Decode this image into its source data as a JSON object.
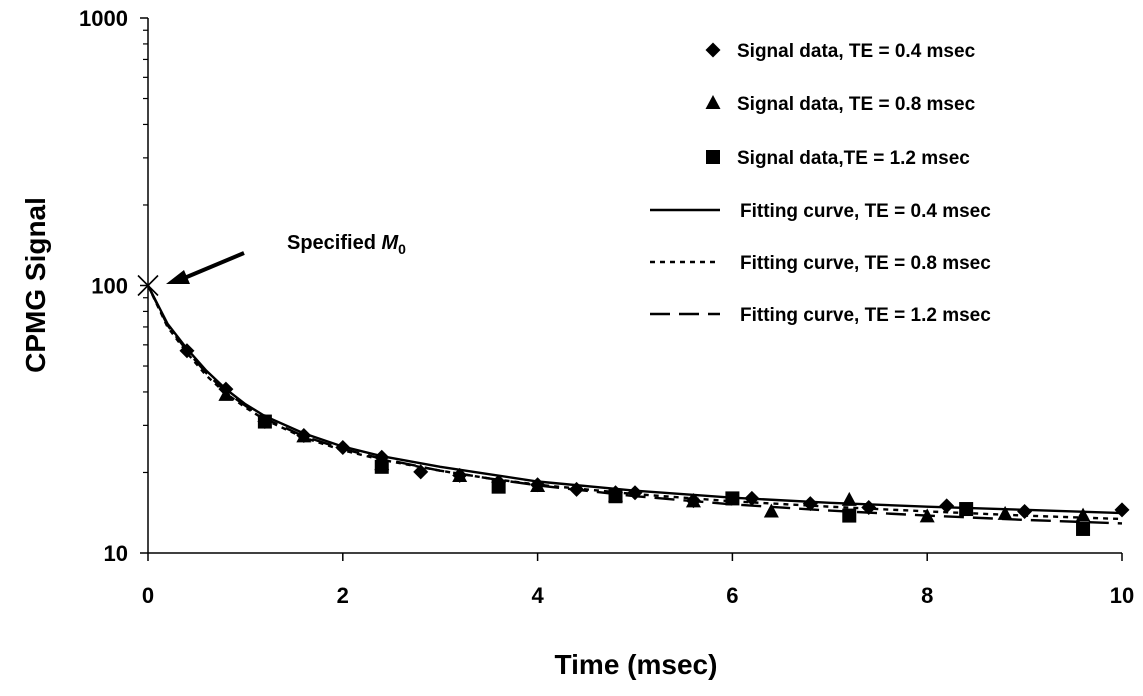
{
  "chart_data": {
    "type": "scatter",
    "title": "",
    "xlabel": "Time (msec)",
    "ylabel": "CPMG Signal",
    "xlim": [
      0,
      10
    ],
    "ylim": [
      10,
      1000
    ],
    "yscale": "log",
    "x_ticks": [
      "0",
      "2",
      "4",
      "6",
      "8",
      "10"
    ],
    "y_ticks": [
      "10",
      "100",
      "1000"
    ],
    "grid": false,
    "legend_position": "top-right",
    "annotation": {
      "text": "Specified ",
      "math_symbol": "M",
      "subscript": "0",
      "point": [
        0,
        100
      ],
      "marker": "x"
    },
    "series": [
      {
        "name": "Signal data, TE = 0.4 msec",
        "kind": "scatter",
        "marker": "diamond",
        "x": [
          0.4,
          0.8,
          1.2,
          1.6,
          2.0,
          2.4,
          2.8,
          3.2,
          3.6,
          4.0,
          4.4,
          4.8,
          5.0,
          5.6,
          6.2,
          6.8,
          7.4,
          8.2,
          9.0,
          10.0
        ],
        "y": [
          57,
          41,
          31,
          27.5,
          24.8,
          22.8,
          20.1,
          19.5,
          18.4,
          18.0,
          17.3,
          16.8,
          16.8,
          15.7,
          16.0,
          15.3,
          14.8,
          15.0,
          14.3,
          14.5
        ]
      },
      {
        "name": "Signal data, TE = 0.8 msec",
        "kind": "scatter",
        "marker": "triangle",
        "x": [
          0.8,
          1.6,
          2.4,
          3.2,
          4.0,
          4.8,
          5.6,
          6.4,
          7.2,
          8.0,
          8.8,
          9.6
        ],
        "y": [
          39,
          27.3,
          21.5,
          19.4,
          17.8,
          16.4,
          15.6,
          14.3,
          15.8,
          13.7,
          14.0,
          13.8
        ]
      },
      {
        "name": "Signal data,TE = 1.2 msec",
        "kind": "scatter",
        "marker": "square",
        "x": [
          1.2,
          2.4,
          3.6,
          4.8,
          6.0,
          7.2,
          8.4,
          9.6
        ],
        "y": [
          31,
          21.0,
          17.7,
          16.3,
          16.0,
          13.8,
          14.6,
          12.3
        ]
      },
      {
        "name": "Fitting curve, TE = 0.4 msec",
        "kind": "line",
        "dash": "solid",
        "x": [
          0,
          0.2,
          0.4,
          0.6,
          0.8,
          1.0,
          1.2,
          1.6,
          2.0,
          2.4,
          3.0,
          3.5,
          4.0,
          5.0,
          6.0,
          7.0,
          8.0,
          9.0,
          10.0
        ],
        "y": [
          100,
          72,
          58,
          48,
          41,
          36,
          32.5,
          28,
          25,
          23,
          21,
          19.7,
          18.5,
          17.1,
          16.1,
          15.4,
          14.9,
          14.5,
          14.1
        ]
      },
      {
        "name": "Fitting curve, TE = 0.8 msec",
        "kind": "line",
        "dash": "dotted",
        "x": [
          0,
          0.2,
          0.4,
          0.6,
          0.8,
          1.0,
          1.2,
          1.6,
          2.0,
          2.4,
          3.0,
          3.5,
          4.0,
          5.0,
          6.0,
          7.0,
          8.0,
          9.0,
          10.0
        ],
        "y": [
          100,
          70,
          56,
          46,
          39.5,
          35,
          31.5,
          27,
          24.2,
          22.3,
          20.3,
          19.0,
          18.0,
          16.6,
          15.6,
          14.9,
          14.3,
          13.8,
          13.4
        ]
      },
      {
        "name": "Fitting curve, TE = 1.2 msec",
        "kind": "line",
        "dash": "dashed",
        "x": [
          0,
          0.2,
          0.4,
          0.6,
          0.8,
          1.0,
          1.2,
          1.6,
          2.0,
          2.4,
          3.0,
          3.5,
          4.0,
          5.0,
          6.0,
          7.0,
          8.0,
          9.0,
          10.0
        ],
        "y": [
          100,
          71,
          57,
          47,
          40,
          35.5,
          31.8,
          27.3,
          24.5,
          22.5,
          20.3,
          19.0,
          17.9,
          16.3,
          15.2,
          14.4,
          13.8,
          13.3,
          12.9
        ]
      }
    ]
  }
}
